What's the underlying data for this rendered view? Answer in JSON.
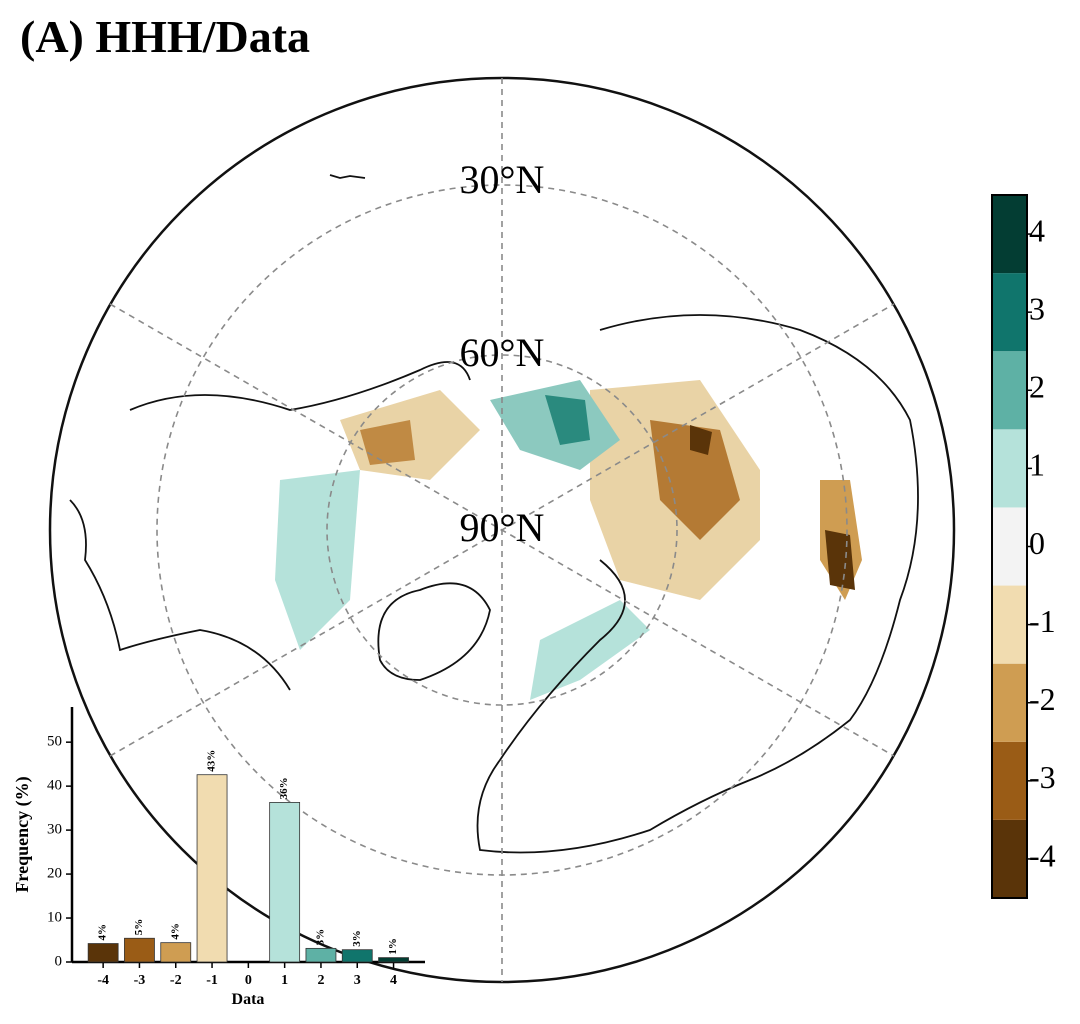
{
  "title": "(A) HHH/Data",
  "map": {
    "lat_labels": [
      "30°N",
      "60°N",
      "90°N"
    ]
  },
  "chart_data": [
    {
      "type": "bar",
      "xlabel": "Data",
      "ylabel": "Frequency (%)",
      "categories": [
        "-4",
        "-3",
        "-2",
        "-1",
        "0",
        "1",
        "2",
        "3",
        "4"
      ],
      "values": [
        4.2,
        5.4,
        4.4,
        42.6,
        0,
        36.3,
        3.1,
        2.8,
        1.0
      ],
      "value_labels": [
        "4%",
        "5%",
        "4%",
        "43%",
        null,
        "36%",
        "3%",
        "3%",
        "1%"
      ],
      "colors": [
        "#5a3409",
        "#9a5c16",
        "#cf9d52",
        "#f1dcb0",
        "#f3f3f3",
        "#b5e2da",
        "#5eb1a5",
        "#10756c",
        "#033d33"
      ],
      "ylim": [
        0,
        58
      ],
      "yticks": [
        0,
        10,
        20,
        30,
        40,
        50
      ]
    },
    {
      "type": "colorbar",
      "ylim": [
        -4.5,
        4.5
      ],
      "yticks": [
        -4,
        -3,
        -2,
        -1,
        0,
        1,
        2,
        3,
        4
      ]
    }
  ]
}
